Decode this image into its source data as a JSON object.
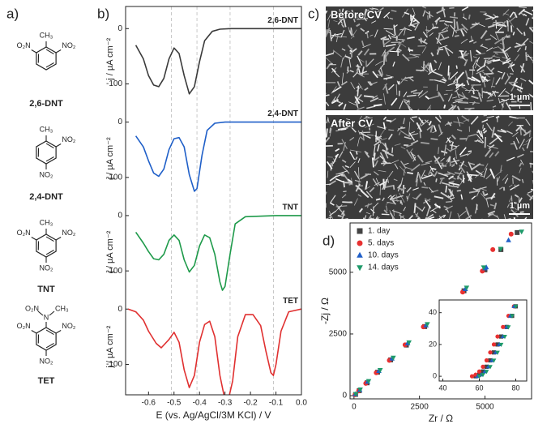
{
  "panel_labels": [
    "a)",
    "b)",
    "c)",
    "d)"
  ],
  "molecules": [
    {
      "name": "2,6-DNT",
      "groups": [
        "CH₃",
        "O₂N",
        "NO₂"
      ]
    },
    {
      "name": "2,4-DNT",
      "groups": [
        "CH₃",
        "NO₂",
        "NO₂"
      ]
    },
    {
      "name": "TNT",
      "groups": [
        "CH₃",
        "O₂N",
        "NO₂",
        "NO₂"
      ]
    },
    {
      "name": "TET",
      "groups": [
        "N",
        "CH₃",
        "O₂N",
        "O₂N",
        "NO₂",
        "NO₂"
      ]
    }
  ],
  "voltammetry": {
    "type": "line",
    "xlabel": "E (vs. Ag/AgCl/3M KCl) / V",
    "xlim": [
      -0.69,
      0
    ],
    "xticks": [
      -0.6,
      -0.5,
      -0.4,
      -0.3,
      -0.2,
      -0.1,
      {
        "value": 0,
        "label": "0.0"
      }
    ],
    "guides": [
      -0.51,
      -0.41,
      -0.28,
      -0.11
    ],
    "charts": [
      {
        "name": "2,6-DNT",
        "ylabel": "j / µA cm⁻²",
        "color": "#3a3a3a",
        "ylim": [
          -150,
          40
        ],
        "yticks": [
          -100,
          0
        ],
        "x": [
          -0.65,
          -0.62,
          -0.6,
          -0.58,
          -0.56,
          -0.54,
          -0.52,
          -0.5,
          -0.48,
          -0.46,
          -0.44,
          -0.42,
          -0.4,
          -0.38,
          -0.35,
          -0.32,
          -0.28,
          -0.2,
          -0.1,
          0
        ],
        "values": [
          -30,
          -55,
          -85,
          -102,
          -105,
          -90,
          -55,
          -35,
          -45,
          -85,
          -118,
          -105,
          -60,
          -22,
          -5,
          -1,
          0,
          0,
          0,
          0
        ]
      },
      {
        "name": "2,4-DNT",
        "ylabel": "j / µA cm⁻²",
        "color": "#1f5fc8",
        "ylim": [
          -150,
          19
        ],
        "yticks": [
          -100,
          0
        ],
        "x": [
          -0.65,
          -0.62,
          -0.6,
          -0.58,
          -0.56,
          -0.54,
          -0.52,
          -0.5,
          -0.48,
          -0.46,
          -0.44,
          -0.42,
          -0.41,
          -0.39,
          -0.37,
          -0.34,
          -0.3,
          -0.2,
          -0.1,
          0
        ],
        "values": [
          -25,
          -45,
          -70,
          -92,
          -98,
          -85,
          -50,
          -30,
          -28,
          -45,
          -95,
          -125,
          -120,
          -60,
          -15,
          -2,
          0,
          0,
          0,
          0
        ]
      },
      {
        "name": "TNT",
        "ylabel": "j / µA cm⁻²",
        "color": "#1e9a4a",
        "ylim": [
          -150,
          19
        ],
        "yticks": [
          -100,
          0
        ],
        "x": [
          -0.65,
          -0.62,
          -0.6,
          -0.58,
          -0.56,
          -0.54,
          -0.52,
          -0.5,
          -0.48,
          -0.46,
          -0.44,
          -0.42,
          -0.4,
          -0.38,
          -0.36,
          -0.34,
          -0.32,
          -0.31,
          -0.3,
          -0.28,
          -0.26,
          -0.22,
          -0.1,
          0
        ],
        "values": [
          -30,
          -50,
          -65,
          -78,
          -80,
          -70,
          -45,
          -35,
          -45,
          -80,
          -102,
          -90,
          -55,
          -35,
          -40,
          -70,
          -120,
          -135,
          -128,
          -70,
          -15,
          -2,
          0,
          0
        ]
      },
      {
        "name": "TET",
        "ylabel": "j / µA cm⁻²",
        "color": "#e03030",
        "ylim": [
          -155,
          19
        ],
        "yticks": [
          -100,
          0
        ],
        "x": [
          -0.68,
          -0.65,
          -0.62,
          -0.6,
          -0.57,
          -0.55,
          -0.52,
          -0.5,
          -0.48,
          -0.46,
          -0.44,
          -0.42,
          -0.4,
          -0.38,
          -0.36,
          -0.34,
          -0.32,
          -0.3,
          -0.29,
          -0.27,
          -0.25,
          -0.22,
          -0.19,
          -0.16,
          -0.14,
          -0.12,
          -0.11,
          -0.1,
          -0.08,
          -0.05,
          0
        ],
        "values": [
          0,
          -5,
          -20,
          -40,
          -62,
          -70,
          -55,
          -42,
          -60,
          -110,
          -142,
          -120,
          -60,
          -28,
          -22,
          -50,
          -120,
          -165,
          -170,
          -130,
          -50,
          -10,
          -10,
          -30,
          -75,
          -115,
          -120,
          -100,
          -40,
          -5,
          0
        ]
      }
    ]
  },
  "sem": {
    "images": [
      {
        "label": "Before CV",
        "scale": "1 µm"
      },
      {
        "label": "After CV",
        "scale": "1 µm"
      }
    ]
  },
  "impedance": {
    "type": "scatter",
    "xlabel": "Zr / Ω",
    "ylabel": "-Zj / Ω",
    "xlim": [
      -150,
      6780
    ],
    "ylim": [
      -130,
      7000
    ],
    "xticks": [
      0,
      2500,
      5000
    ],
    "yticks": [
      0,
      2500,
      5000
    ],
    "legend": "upper left",
    "series": [
      {
        "name": "1. day",
        "color": "#444444",
        "marker": "square",
        "x": [
          60,
          200,
          500,
          900,
          1400,
          2000,
          2700,
          3400,
          4200,
          5000,
          5610,
          6230
        ],
        "values": [
          50,
          200,
          520,
          950,
          1450,
          2050,
          2800,
          3500,
          4250,
          5100,
          5920,
          6610
        ],
        "inset_x": [
          58,
          60,
          62,
          64,
          66,
          68,
          70,
          72,
          75,
          78,
          80
        ],
        "inset_values": [
          0,
          1,
          3,
          6,
          10,
          15,
          20,
          25,
          31,
          38,
          44
        ]
      },
      {
        "name": "5. days",
        "color": "#e83030",
        "marker": "circle",
        "x": [
          40,
          180,
          450,
          850,
          1350,
          1950,
          2650,
          3350,
          4150,
          4900,
          5300,
          6000
        ],
        "values": [
          40,
          190,
          500,
          930,
          1430,
          2060,
          2790,
          3490,
          4200,
          5050,
          5920,
          6550
        ],
        "inset_x": [
          56,
          58,
          60,
          62,
          64,
          66,
          68,
          70,
          73,
          76,
          79
        ],
        "inset_values": [
          0,
          1,
          3,
          6,
          10,
          15,
          20,
          25,
          31,
          38,
          44
        ]
      },
      {
        "name": "10. days",
        "color": "#1f5fc8",
        "marker": "triangle",
        "x": [
          50,
          220,
          520,
          950,
          1450,
          2050,
          2750,
          3450,
          4250,
          5000,
          5050,
          5900
        ],
        "values": [
          60,
          230,
          560,
          1000,
          1500,
          2120,
          2850,
          3560,
          4320,
          5160,
          5200,
          6300
        ],
        "inset_x": [
          59,
          61,
          63,
          65,
          67,
          69,
          71,
          73,
          75,
          77,
          79
        ],
        "inset_values": [
          0,
          1,
          3,
          6,
          10,
          15,
          20,
          25,
          31,
          38,
          44
        ]
      },
      {
        "name": "14. days",
        "color": "#1e9a6a",
        "marker": "triangle-down",
        "x": [
          70,
          240,
          560,
          1000,
          1500,
          2100,
          2800,
          3500,
          4300,
          4950,
          5600,
          6400
        ],
        "values": [
          70,
          250,
          590,
          1040,
          1540,
          2160,
          2900,
          3600,
          4380,
          5200,
          5950,
          6650
        ],
        "inset_x": [
          60,
          62,
          64,
          66,
          68,
          70,
          72,
          74,
          76,
          78,
          80
        ],
        "inset_values": [
          0,
          1,
          3,
          6,
          10,
          15,
          20,
          25,
          31,
          38,
          44
        ]
      }
    ],
    "inset": {
      "xlim": [
        38,
        86
      ],
      "ylim": [
        -3,
        48
      ],
      "xticks": [
        40,
        60,
        80
      ],
      "yticks": [
        0,
        20,
        40
      ]
    }
  }
}
